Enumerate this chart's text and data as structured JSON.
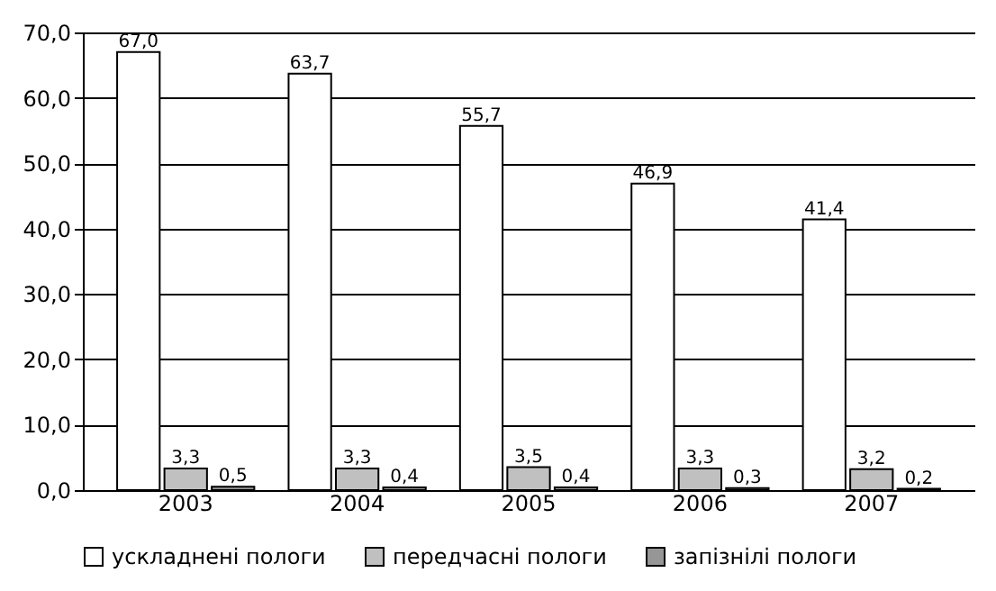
{
  "chart_data": {
    "type": "bar",
    "categories": [
      "2003",
      "2004",
      "2005",
      "2006",
      "2007"
    ],
    "series": [
      {
        "name": "ускладнені пологи",
        "color": "#ffffff",
        "values": [
          67.0,
          63.7,
          55.7,
          46.9,
          41.4
        ],
        "value_labels": [
          "67,0",
          "63,7",
          "55,7",
          "46,9",
          "41,4"
        ]
      },
      {
        "name": "передчасні пологи",
        "color": "#c0c0c0",
        "values": [
          3.3,
          3.3,
          3.5,
          3.3,
          3.2
        ],
        "value_labels": [
          "3,3",
          "3,3",
          "3,5",
          "3,3",
          "3,2"
        ]
      },
      {
        "name": "запізнілі пологи",
        "color": "#969696",
        "values": [
          0.5,
          0.4,
          0.4,
          0.3,
          0.2
        ],
        "value_labels": [
          "0,5",
          "0,4",
          "0,4",
          "0,3",
          "0,2"
        ]
      }
    ],
    "ylim": [
      0,
      70
    ],
    "yticks": [
      {
        "value": 0,
        "label": "0,0"
      },
      {
        "value": 10,
        "label": "10,0"
      },
      {
        "value": 20,
        "label": "20,0"
      },
      {
        "value": 30,
        "label": "30,0"
      },
      {
        "value": 40,
        "label": "40,0"
      },
      {
        "value": 50,
        "label": "50,0"
      },
      {
        "value": 60,
        "label": "60,0"
      },
      {
        "value": 70,
        "label": "70,0"
      }
    ],
    "grid": "y",
    "legend": "bottom"
  }
}
